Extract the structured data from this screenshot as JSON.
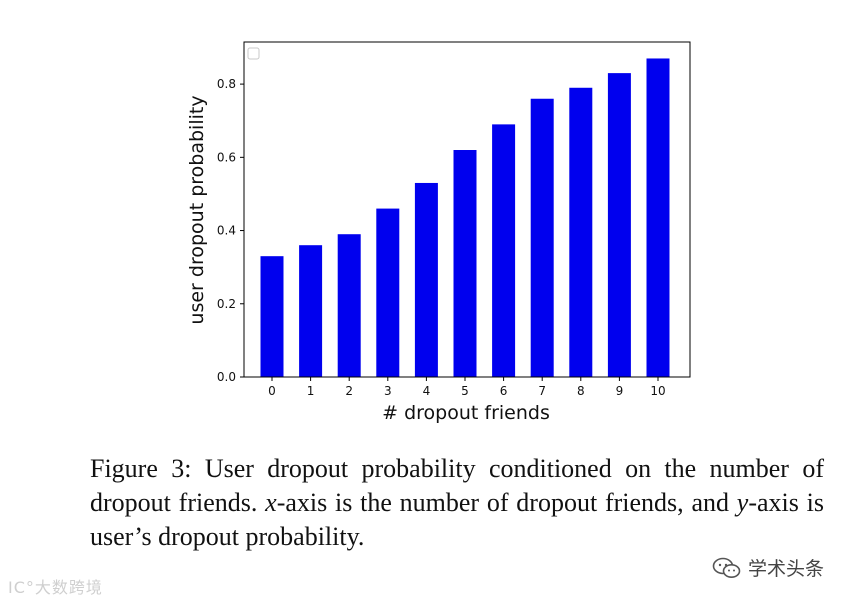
{
  "chart_data": {
    "type": "bar",
    "categories": [
      "0",
      "1",
      "2",
      "3",
      "4",
      "5",
      "6",
      "7",
      "8",
      "9",
      "10"
    ],
    "values": [
      0.33,
      0.36,
      0.39,
      0.46,
      0.53,
      0.62,
      0.69,
      0.76,
      0.79,
      0.83,
      0.87
    ],
    "xlabel": "# dropout friends",
    "ylabel": "user dropout probability",
    "ylim": [
      0.0,
      0.915
    ],
    "yticks": [
      "0.0",
      "0.2",
      "0.4",
      "0.6",
      "0.8"
    ],
    "bar_color": "#0000ee",
    "legend": "top-left (empty box)",
    "grid": false
  },
  "caption": {
    "prefix": "Figure 3: User dropout probability conditioned on the number of dropout friends. ",
    "x_var": "x",
    "middle": "-axis is the number of dropout friends, and ",
    "y_var": "y",
    "suffix": "-axis is user’s dropout probability."
  },
  "watermarks": {
    "left": "IC°大数跨境",
    "right": "学术头条",
    "right_icon": "wechat-icon"
  }
}
